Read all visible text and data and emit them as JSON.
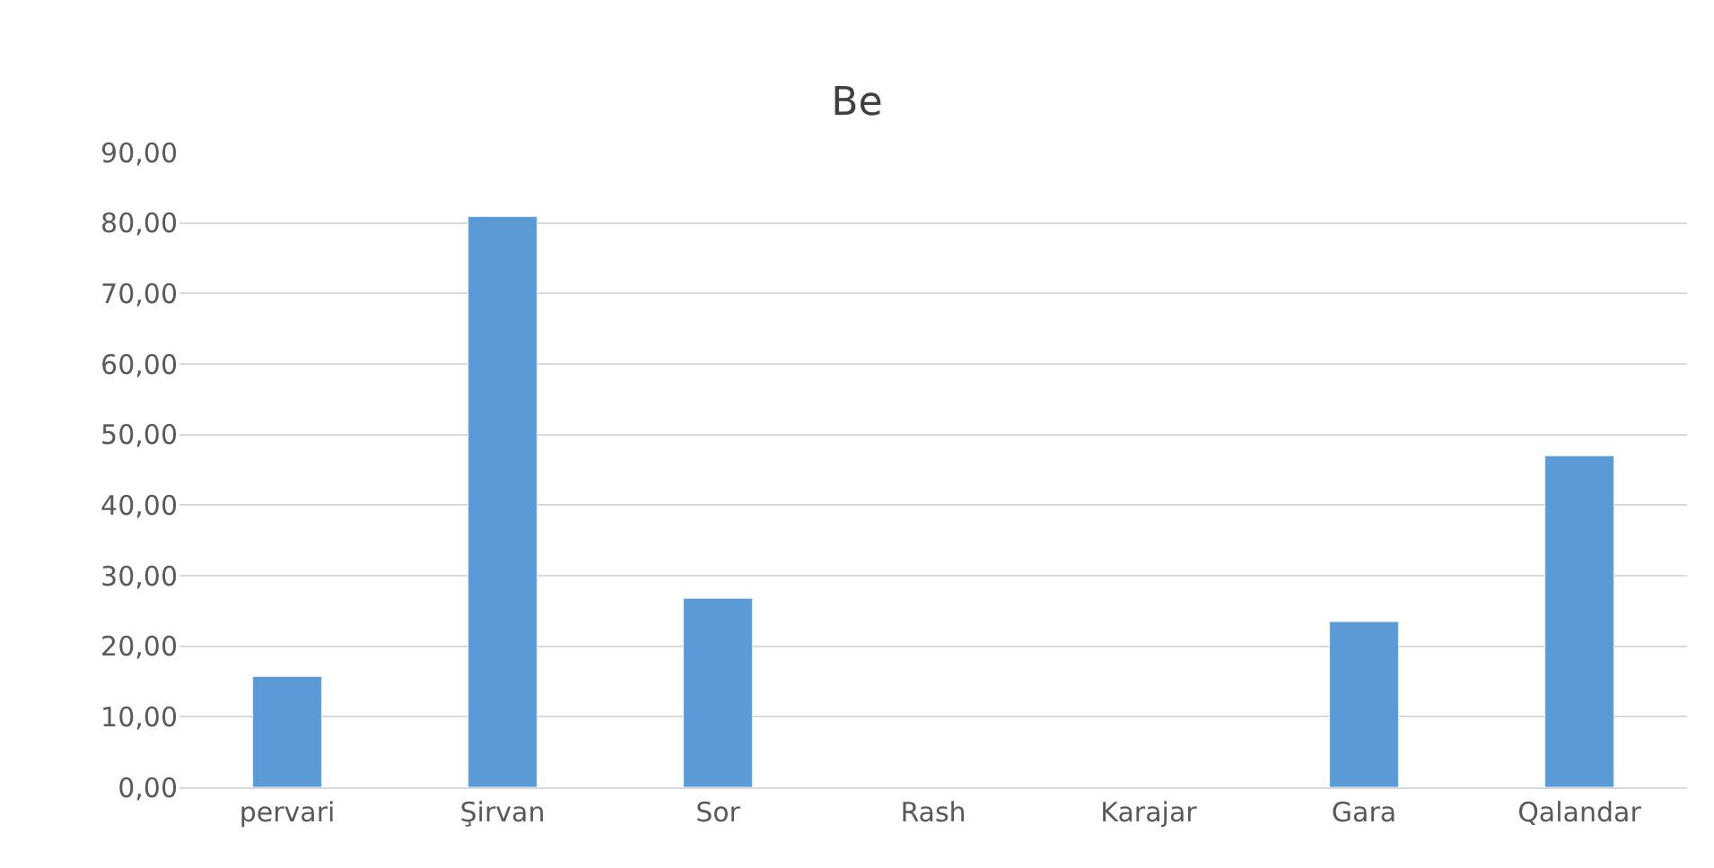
{
  "chart_data": {
    "type": "bar",
    "title": "Be",
    "categories": [
      "pervari",
      "Şirvan",
      "Sor",
      "Rash",
      "Karajar",
      "Gara",
      "Qalandar"
    ],
    "values": [
      15.7,
      80.9,
      26.8,
      null,
      null,
      23.5,
      47.0
    ],
    "color": "#5b9bd5",
    "ylim": [
      0,
      90
    ],
    "yticks": [
      {
        "value": 0,
        "label": "0,00"
      },
      {
        "value": 10,
        "label": "10,00"
      },
      {
        "value": 20,
        "label": "20,00"
      },
      {
        "value": 30,
        "label": "30,00"
      },
      {
        "value": 40,
        "label": "40,00"
      },
      {
        "value": 50,
        "label": "50,00"
      },
      {
        "value": 60,
        "label": "60,00"
      },
      {
        "value": 70,
        "label": "70,00"
      },
      {
        "value": 80,
        "label": "80,00"
      },
      {
        "value": 90,
        "label": "90,00"
      }
    ],
    "grid": "y"
  }
}
